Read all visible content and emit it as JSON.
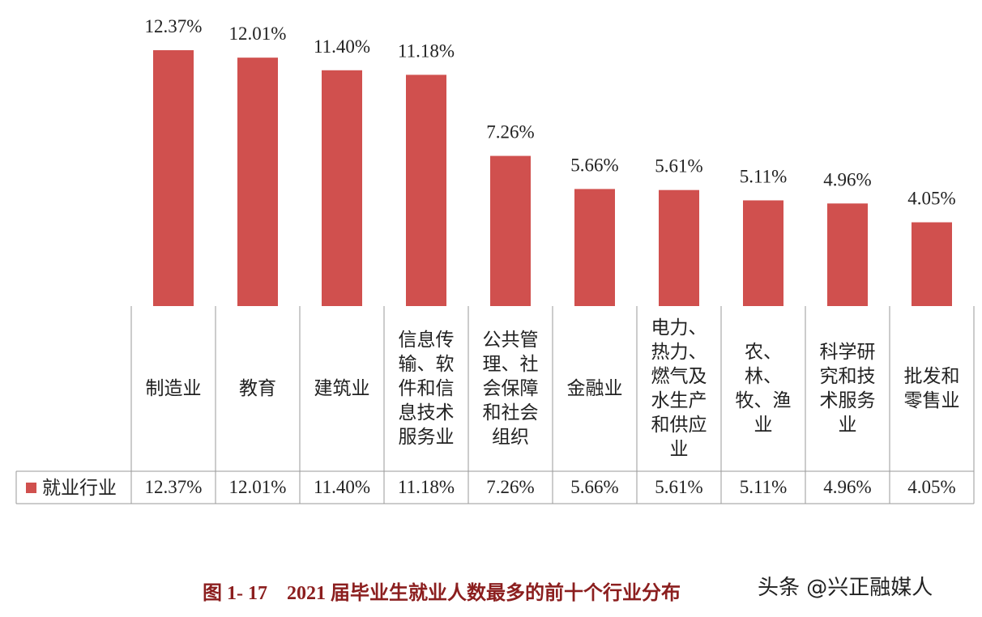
{
  "chart_data": {
    "type": "bar",
    "title": "图 1- 17　2021 届毕业生就业人数最多的前十个行业分布",
    "watermark": "头条 @兴正融媒人",
    "categories": [
      "制造业",
      "教育",
      "建筑业",
      "信息传输、软件和信息技术服务业",
      "公共管理、社会保障和社会组织",
      "金融业",
      "电力、热力、燃气及水生产和供应业",
      "农、林、牧、渔业",
      "科学研究和技术服务业",
      "批发和零售业"
    ],
    "series": [
      {
        "name": "就业行业",
        "color": "#d0504e",
        "values": [
          12.37,
          12.01,
          11.4,
          11.18,
          7.26,
          5.66,
          5.61,
          5.11,
          4.96,
          4.05
        ],
        "value_labels": [
          "12.37%",
          "12.01%",
          "11.40%",
          "11.18%",
          "7.26%",
          "5.66%",
          "5.61%",
          "5.11%",
          "4.96%",
          "4.05%"
        ]
      }
    ]
  }
}
